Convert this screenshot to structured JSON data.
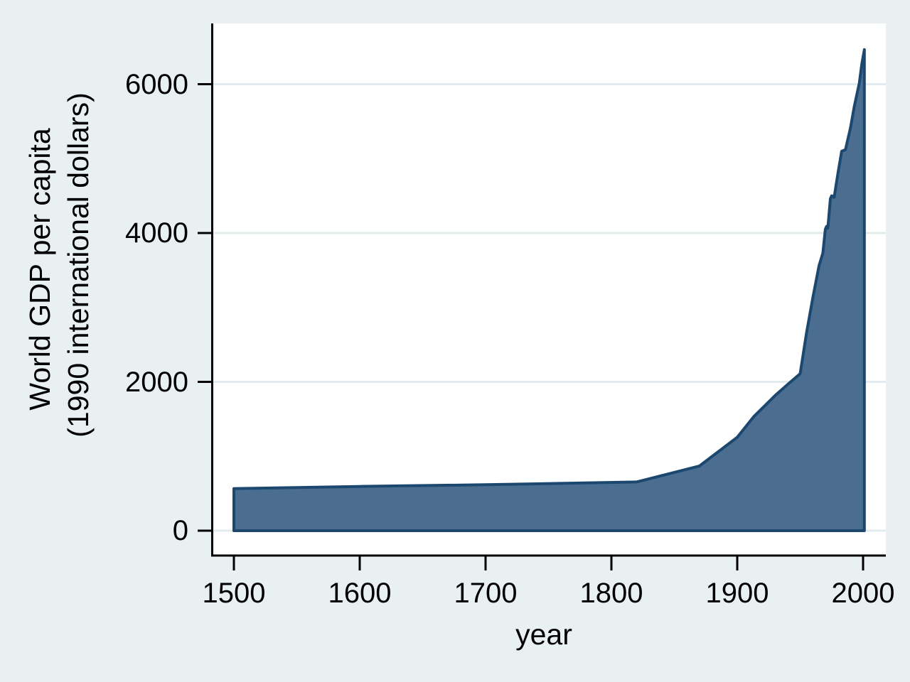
{
  "figure": {
    "background_color": "#e9f0f2",
    "plot_background_color": "#ffffff",
    "grid_color": "#e2ebee",
    "axis_color": "#000000",
    "text_color": "#000000"
  },
  "chart_data": {
    "type": "area",
    "title": "",
    "xlabel": "year",
    "ylabel_lines": [
      "World GDP per capita",
      "(1990 international dollars)"
    ],
    "x_tick_labels": [
      "1500",
      "1600",
      "1700",
      "1800",
      "1900",
      "2000"
    ],
    "x_tick_values": [
      1500,
      1600,
      1700,
      1800,
      1900,
      2000
    ],
    "y_tick_labels": [
      "0",
      "2000",
      "4000",
      "6000"
    ],
    "y_tick_values": [
      0,
      2000,
      4000,
      6000
    ],
    "xlim": [
      1482,
      2018
    ],
    "ylim": [
      -330,
      6820
    ],
    "grid": "horizontal",
    "legend": "none",
    "series": [
      {
        "name": "World GDP per capita (1990 international dollars)",
        "fill_color": "#4a6d90",
        "line_color": "#1c4870",
        "points": [
          [
            1500,
            565
          ],
          [
            1600,
            595
          ],
          [
            1700,
            618
          ],
          [
            1820,
            655
          ],
          [
            1870,
            870
          ],
          [
            1900,
            1255
          ],
          [
            1913,
            1530
          ],
          [
            1930,
            1815
          ],
          [
            1940,
            1965
          ],
          [
            1950,
            2110
          ],
          [
            1955,
            2650
          ],
          [
            1960,
            3125
          ],
          [
            1965,
            3560
          ],
          [
            1968,
            3730
          ],
          [
            1970,
            4050
          ],
          [
            1971,
            4090
          ],
          [
            1972,
            4065
          ],
          [
            1974,
            4460
          ],
          [
            1975,
            4500
          ],
          [
            1977,
            4480
          ],
          [
            1980,
            4800
          ],
          [
            1983,
            5100
          ],
          [
            1986,
            5120
          ],
          [
            1990,
            5415
          ],
          [
            1993,
            5700
          ],
          [
            1997,
            6015
          ],
          [
            1999,
            6270
          ],
          [
            2001,
            6465
          ]
        ]
      }
    ]
  }
}
